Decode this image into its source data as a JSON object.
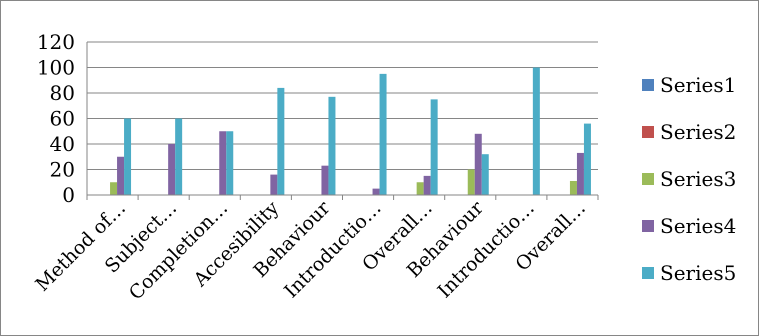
{
  "chart_data": {
    "type": "bar",
    "categories": [
      "Method of…",
      "Subject…",
      "Completion…",
      "Accesibility",
      "Behaviour",
      "Introductio…",
      "Overall…",
      "Behaviour",
      "Introductio…",
      "Overall…"
    ],
    "series": [
      {
        "name": "Series1",
        "color": "#4F81BD",
        "values": [
          0,
          0,
          0,
          0,
          0,
          0,
          0,
          0,
          0,
          0
        ]
      },
      {
        "name": "Series2",
        "color": "#C0504D",
        "values": [
          0,
          0,
          0,
          0,
          0,
          0,
          0,
          0,
          0,
          0
        ]
      },
      {
        "name": "Series3",
        "color": "#9BBB59",
        "values": [
          10,
          0,
          0,
          0,
          0,
          0,
          10,
          20,
          0,
          11
        ]
      },
      {
        "name": "Series4",
        "color": "#8064A2",
        "values": [
          30,
          40,
          50,
          16,
          23,
          5,
          15,
          48,
          0,
          33
        ]
      },
      {
        "name": "Series5",
        "color": "#4BACC6",
        "values": [
          60,
          60,
          50,
          84,
          77,
          95,
          75,
          32,
          100,
          56
        ]
      }
    ],
    "yticks": [
      0,
      20,
      40,
      60,
      80,
      100,
      120
    ],
    "ylim": [
      0,
      120
    ],
    "grid": true,
    "legend_position": "right"
  }
}
